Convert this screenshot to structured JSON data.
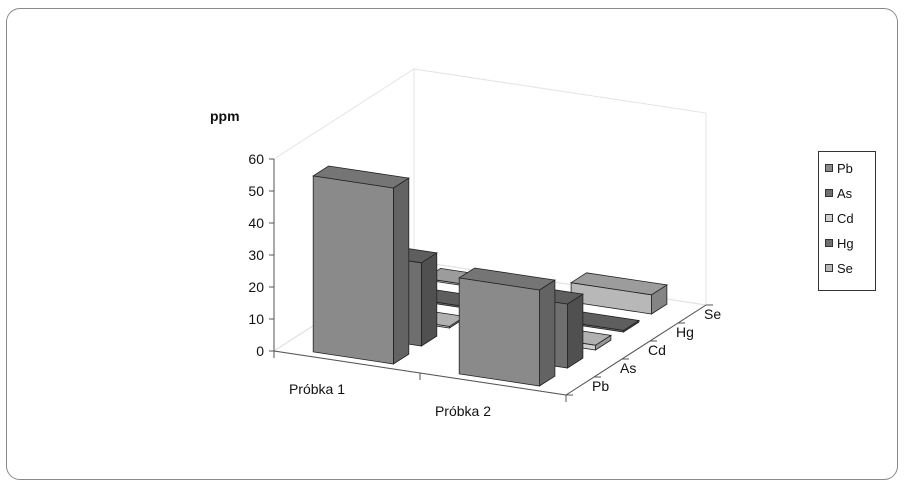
{
  "chart_data": {
    "type": "bar3d",
    "ylabel": "ppm",
    "ylim": [
      0,
      60
    ],
    "yticks": [
      "0",
      "10",
      "20",
      "30",
      "40",
      "50",
      "60"
    ],
    "categories": [
      "Próbka 1",
      "Próbka 2"
    ],
    "series": [
      {
        "name": "Pb",
        "values": [
          55,
          30
        ],
        "color": "#8a8a8a"
      },
      {
        "name": "As",
        "values": [
          26,
          20
        ],
        "color": "#6f6f6f"
      },
      {
        "name": "Cd",
        "values": [
          0.5,
          1.5
        ],
        "color": "#d0d0d0"
      },
      {
        "name": "Hg",
        "values": [
          0.5,
          0.5
        ],
        "color": "#6f6f6f"
      },
      {
        "name": "Se",
        "values": [
          0.5,
          6
        ],
        "color": "#b8b8b8"
      }
    ],
    "depth_labels": [
      "Pb",
      "As",
      "Cd",
      "Hg",
      "Se"
    ],
    "legend_position": "right"
  }
}
